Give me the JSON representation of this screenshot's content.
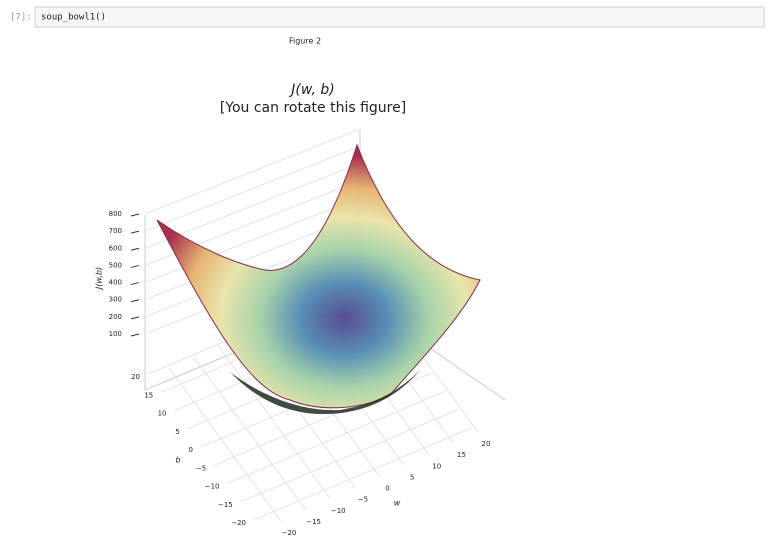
{
  "notebook": {
    "prompt": "[7]:",
    "code": "soup_bowl1()",
    "figure_label": "Figure 2"
  },
  "chart_data": {
    "type": "surface3d",
    "title": "J(w, b)",
    "subtitle": "[You can rotate this figure]",
    "zlabel": "J(w,b)",
    "xlabel": "w",
    "ylabel": "b",
    "zticks": [
      100,
      200,
      300,
      400,
      500,
      600,
      700,
      800
    ],
    "yticks": [
      {
        "value": -20,
        "label": "−20"
      },
      {
        "value": -15,
        "label": "−15"
      },
      {
        "value": -10,
        "label": "−10"
      },
      {
        "value": -5,
        "label": "−5"
      },
      0,
      5,
      10,
      15,
      20
    ],
    "xticks": [
      {
        "value": -20,
        "label": "−20"
      },
      {
        "value": -15,
        "label": "−15"
      },
      {
        "value": -10,
        "label": "−10"
      },
      {
        "value": -5,
        "label": "−5"
      },
      0,
      5,
      10,
      15,
      20
    ]
  }
}
